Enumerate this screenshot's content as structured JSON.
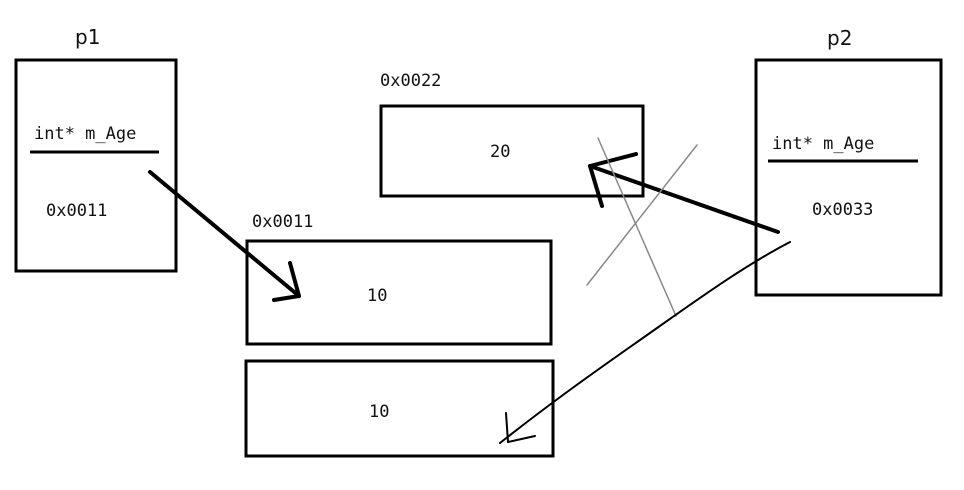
{
  "objects": {
    "p1": {
      "name": "p1",
      "member": "int* m_Age",
      "value": "0x0011"
    },
    "p2": {
      "name": "p2",
      "member": "int* m_Age",
      "value": "0x0033"
    }
  },
  "heap": {
    "block_0022": {
      "address": "0x0022",
      "value": "20"
    },
    "block_0011": {
      "address": "0x0011",
      "value": "10"
    },
    "block_0033": {
      "value": "10"
    }
  },
  "stroke_color": "#000000",
  "crossout_color": "#888888"
}
